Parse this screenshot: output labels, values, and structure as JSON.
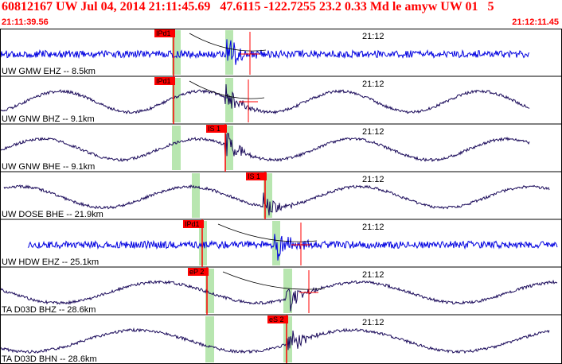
{
  "header": {
    "title": "60812167 UW Jul 04, 2014 21:11:45.69   47.6115 -122.7255 23.2 0.33 Md le amyw UW 01   5",
    "time_start": "21:11:39.56",
    "time_end": "21:12:11.45"
  },
  "colors": {
    "title": "#ff0000",
    "trace_vertical": "#0000e0",
    "trace_horizontal": "#1a0a5a",
    "pick_box": "#ff0000",
    "window": "#b8e6b0",
    "border": "#000000"
  },
  "traces": [
    {
      "label": "UW GMW EHZ -- 8.5km",
      "time_label": "21:12",
      "component": "vertical",
      "pick": "IPd1",
      "amp": 0.9,
      "seed": 1
    },
    {
      "label": "UW GNW BHZ -- 9.1km",
      "time_label": "21:12",
      "component": "horizontal",
      "pick": "IPd1",
      "amp": 1.0,
      "seed": 2
    },
    {
      "label": "UW GNW BHE -- 9.1km",
      "time_label": "21:12",
      "component": "horizontal",
      "pick": "IS 1",
      "amp": 1.0,
      "seed": 3
    },
    {
      "label": "UW DOSE BHE -- 21.9km",
      "time_label": "21:12",
      "component": "horizontal",
      "pick": "IS 1",
      "amp": 1.0,
      "seed": 4
    },
    {
      "label": "UW HDW EHZ -- 25.1km",
      "time_label": "21:12",
      "component": "vertical",
      "pick": "IPd1",
      "amp": 0.9,
      "seed": 5
    },
    {
      "label": "TA D03D BHZ -- 28.6km",
      "time_label": "21:12",
      "component": "horizontal",
      "pick": "eP 2",
      "amp": 1.0,
      "seed": 6
    },
    {
      "label": "TA D03D BHN -- 28.6km",
      "time_label": "21:12",
      "component": "horizontal",
      "pick": "eS 2",
      "amp": 1.0,
      "seed": 7
    }
  ]
}
